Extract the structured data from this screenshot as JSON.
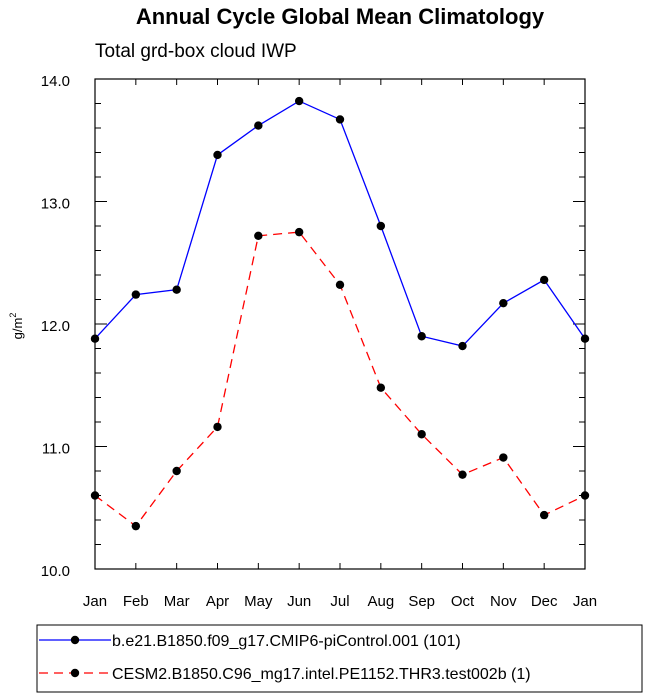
{
  "chart_data": {
    "type": "line",
    "title": "Annual Cycle Global Mean Climatology",
    "subtitle": "Total grd-box cloud IWP",
    "ylabel_main": "g/m",
    "ylabel_sup": "2",
    "xlabel": "",
    "categories": [
      "Jan",
      "Feb",
      "Mar",
      "Apr",
      "May",
      "Jun",
      "Jul",
      "Aug",
      "Sep",
      "Oct",
      "Nov",
      "Dec",
      "Jan"
    ],
    "ylim": [
      10.0,
      14.0
    ],
    "yticks": [
      10.0,
      11.0,
      12.0,
      13.0,
      14.0
    ],
    "ytick_labels": [
      "10.0",
      "11.0",
      "12.0",
      "13.0",
      "14.0"
    ],
    "series": [
      {
        "name": "b.e21.B1850.f09_g17.CMIP6-piControl.001 (101)",
        "color": "#0000ff",
        "dash": "solid",
        "values": [
          11.88,
          12.24,
          12.28,
          13.38,
          13.62,
          13.82,
          13.67,
          12.8,
          11.9,
          11.82,
          12.17,
          12.36,
          11.88
        ]
      },
      {
        "name": "CESM2.B1850.C96_mg17.intel.PE1152.THR3.test002b (1)",
        "color": "#ff0000",
        "dash": "dashed",
        "values": [
          10.6,
          10.35,
          10.8,
          11.16,
          12.72,
          12.75,
          12.32,
          11.48,
          11.1,
          10.77,
          10.91,
          10.44,
          10.6
        ]
      }
    ],
    "grid": false,
    "legend_position": "bottom"
  }
}
